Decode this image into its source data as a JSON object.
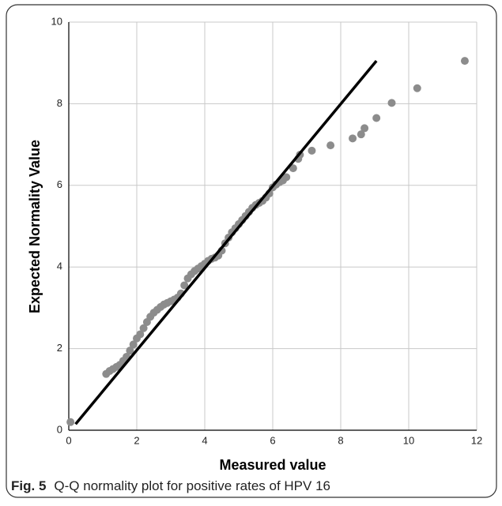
{
  "chart_data": {
    "type": "scatter",
    "xlabel": "Measured value",
    "ylabel": "Expected Normality Value",
    "x": [
      0.05,
      1.1,
      1.2,
      1.3,
      1.4,
      1.5,
      1.6,
      1.7,
      1.8,
      1.9,
      2.0,
      2.1,
      2.2,
      2.3,
      2.4,
      2.5,
      2.6,
      2.7,
      2.8,
      2.9,
      3.0,
      3.1,
      3.2,
      3.3,
      3.4,
      3.5,
      3.6,
      3.7,
      3.8,
      3.9,
      4.0,
      4.1,
      4.2,
      4.3,
      4.4,
      4.5,
      4.6,
      4.7,
      4.8,
      4.9,
      5.0,
      5.1,
      5.2,
      5.3,
      5.4,
      5.5,
      5.6,
      5.7,
      5.8,
      5.9,
      6.0,
      6.1,
      6.2,
      6.3,
      6.4,
      6.6,
      6.75,
      6.8,
      7.15,
      7.7,
      8.35,
      8.6,
      8.7,
      9.05,
      9.5,
      10.25,
      11.65
    ],
    "values": [
      0.2,
      1.38,
      1.45,
      1.5,
      1.55,
      1.6,
      1.7,
      1.8,
      1.95,
      2.1,
      2.25,
      2.35,
      2.5,
      2.65,
      2.78,
      2.88,
      2.95,
      3.02,
      3.08,
      3.12,
      3.16,
      3.2,
      3.25,
      3.35,
      3.55,
      3.72,
      3.82,
      3.9,
      3.96,
      4.02,
      4.08,
      4.15,
      4.2,
      4.23,
      4.28,
      4.4,
      4.58,
      4.72,
      4.85,
      4.95,
      5.05,
      5.15,
      5.25,
      5.35,
      5.45,
      5.52,
      5.57,
      5.62,
      5.7,
      5.8,
      5.95,
      6.02,
      6.08,
      6.12,
      6.2,
      6.42,
      6.65,
      6.75,
      6.85,
      6.98,
      7.15,
      7.25,
      7.4,
      7.65,
      8.02,
      8.38,
      9.05
    ],
    "color": "#8c8c8c",
    "reference_line": {
      "x": [
        0.2,
        9.05
      ],
      "y": [
        0.15,
        9.05
      ],
      "color": "#000000"
    },
    "xlim": [
      0,
      12
    ],
    "xticks": [
      0,
      2,
      4,
      6,
      8,
      10,
      12
    ],
    "ylim": [
      0,
      10
    ],
    "yticks": [
      0,
      2,
      4,
      6,
      8,
      10
    ],
    "grid": true
  },
  "caption": {
    "label": "Fig. 5",
    "text": "Q-Q normality plot for positive rates of HPV 16"
  }
}
